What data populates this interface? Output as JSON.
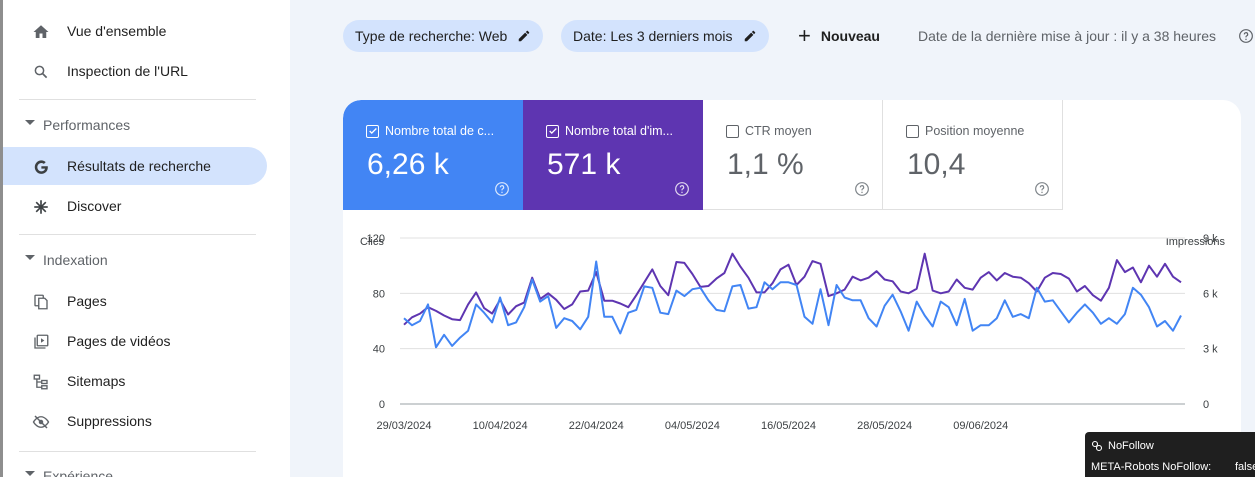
{
  "sidebar": {
    "items": [
      {
        "label": "Vue d'ensemble",
        "icon": "home-icon"
      },
      {
        "label": "Inspection de l'URL",
        "icon": "search-icon"
      },
      {
        "label": "Résultats de recherche",
        "icon": "google-g-icon"
      },
      {
        "label": "Discover",
        "icon": "asterisk-icon"
      },
      {
        "label": "Pages",
        "icon": "pages-icon"
      },
      {
        "label": "Pages de vidéos",
        "icon": "video-pages-icon"
      },
      {
        "label": "Sitemaps",
        "icon": "sitemap-icon"
      },
      {
        "label": "Suppressions",
        "icon": "eye-off-icon"
      }
    ],
    "sections": {
      "performances": "Performances",
      "indexation": "Indexation",
      "experience": "Expérience"
    }
  },
  "filters": {
    "search_type": "Type de recherche: Web",
    "date": "Date: Les 3 derniers mois",
    "new": "Nouveau",
    "last_update": "Date de la dernière mise à jour : il y a 38 heures"
  },
  "metrics": {
    "clicks": {
      "label": "Nombre total de c...",
      "value": "6,26 k",
      "checked": true,
      "color": "#4285f4"
    },
    "impressions": {
      "label": "Nombre total d'im...",
      "value": "571 k",
      "checked": true,
      "color": "#5e35b1"
    },
    "ctr": {
      "label": "CTR moyen",
      "value": "1,1 %",
      "checked": false
    },
    "position": {
      "label": "Position moyenne",
      "value": "10,4",
      "checked": false
    }
  },
  "chart_data": {
    "type": "line",
    "ylabel_left": "Clics",
    "ylabel_right": "Impressions",
    "y_ticks_left": [
      "0",
      "40",
      "80",
      "120"
    ],
    "y_ticks_right": [
      "0",
      "3 k",
      "6 k",
      "9 k"
    ],
    "ylim_left": [
      0,
      120
    ],
    "ylim_right": [
      0,
      9000
    ],
    "x_ticks": [
      "29/03/2024",
      "10/04/2024",
      "22/04/2024",
      "04/05/2024",
      "16/05/2024",
      "28/05/2024",
      "09/06/2024"
    ],
    "grid": true,
    "series": [
      {
        "name": "Clics",
        "axis": "left",
        "color": "#4285f4",
        "values": [
          62,
          57,
          60,
          72,
          41,
          50,
          42,
          48,
          53,
          72,
          66,
          59,
          77,
          57,
          59,
          70,
          90,
          74,
          78,
          55,
          62,
          60,
          54,
          63,
          103,
          63,
          63,
          51,
          66,
          68,
          85,
          84,
          66,
          65,
          82,
          78,
          83,
          84,
          75,
          68,
          67,
          85,
          86,
          69,
          70,
          88,
          83,
          88,
          88,
          86,
          63,
          58,
          83,
          57,
          86,
          77,
          75,
          75,
          62,
          56,
          71,
          79,
          67,
          53,
          74,
          64,
          56,
          74,
          70,
          57,
          76,
          53,
          57,
          57,
          62,
          75,
          63,
          65,
          62,
          84,
          74,
          75,
          67,
          59,
          66,
          72,
          66,
          58,
          62,
          58,
          65,
          84,
          79,
          70,
          56,
          60,
          53,
          64
        ]
      },
      {
        "name": "Impressions",
        "axis": "right",
        "color": "#5e35b1",
        "values": [
          4300,
          4700,
          4900,
          5250,
          5050,
          4800,
          4600,
          4550,
          5400,
          6050,
          5200,
          4900,
          5650,
          4850,
          5300,
          5500,
          6850,
          5700,
          6000,
          5650,
          5150,
          5400,
          6100,
          6150,
          7150,
          5600,
          5600,
          5450,
          5250,
          5900,
          6600,
          7300,
          6400,
          5900,
          7700,
          7650,
          7050,
          6350,
          6400,
          6800,
          7100,
          8150,
          7450,
          6850,
          6050,
          6050,
          6550,
          7300,
          7550,
          6450,
          6900,
          7750,
          7600,
          5850,
          6000,
          6200,
          6900,
          6700,
          6850,
          7200,
          6750,
          6650,
          6100,
          6000,
          6250,
          8150,
          6150,
          6000,
          6100,
          6750,
          6300,
          6200,
          6850,
          7150,
          6700,
          7100,
          6900,
          6850,
          6550,
          6100,
          6850,
          7100,
          7050,
          6800,
          6100,
          6400,
          5900,
          5600,
          6300,
          7800,
          7150,
          7400,
          6600,
          7500,
          6900,
          7600,
          6900,
          6600
        ]
      }
    ]
  },
  "tooltip": {
    "title": "NoFollow",
    "label": "META-Robots NoFollow:",
    "value": "false"
  },
  "help_label": "?"
}
